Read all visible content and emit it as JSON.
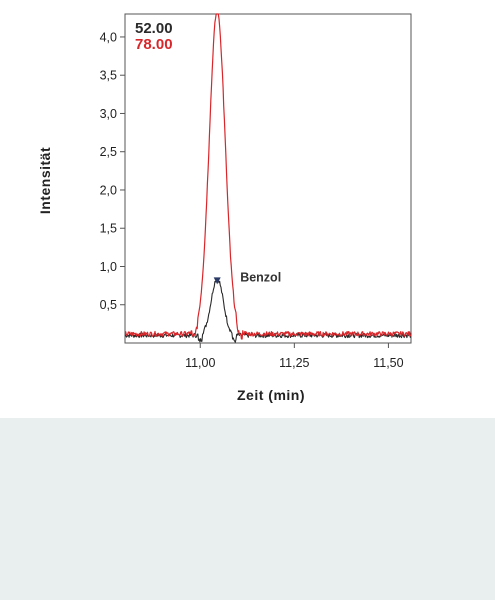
{
  "chart_data": {
    "type": "line",
    "xlabel": "Zeit (min)",
    "ylabel": "Intensität",
    "xlim": [
      10.8,
      11.56
    ],
    "ylim": [
      0,
      4.3
    ],
    "x_ticks": [
      {
        "value": 11.0,
        "label": "11,00"
      },
      {
        "value": 11.25,
        "label": "11,25"
      },
      {
        "value": 11.5,
        "label": "11,50"
      }
    ],
    "y_ticks": [
      {
        "value": 0.5,
        "label": "0,5"
      },
      {
        "value": 1.0,
        "label": "1,0"
      },
      {
        "value": 1.5,
        "label": "1,5"
      },
      {
        "value": 2.0,
        "label": "2,0"
      },
      {
        "value": 2.5,
        "label": "2,5"
      },
      {
        "value": 3.0,
        "label": "3,0"
      },
      {
        "value": 3.5,
        "label": "3,5"
      },
      {
        "value": 4.0,
        "label": "4,0"
      }
    ],
    "legend": {
      "placement": "top-left",
      "entries": [
        {
          "label": "52.00",
          "color": "#2a2a2a"
        },
        {
          "label": "78.00",
          "color": "#d8262a"
        }
      ]
    },
    "series": [
      {
        "name": "52.00",
        "color": "#2a2a2a",
        "baseline": 0.1,
        "peak": {
          "x": 11.045,
          "height": 0.75,
          "width": 0.016
        }
      },
      {
        "name": "78.00",
        "color": "#d8262a",
        "baseline": 0.12,
        "peak": {
          "x": 11.045,
          "height": 4.22,
          "width": 0.021
        }
      }
    ],
    "annotations": [
      {
        "text": "Benzol",
        "x": 11.045,
        "y": 0.78,
        "marker": "triangle-down",
        "marker_color": "#2a3a66"
      }
    ],
    "grid": false
  }
}
